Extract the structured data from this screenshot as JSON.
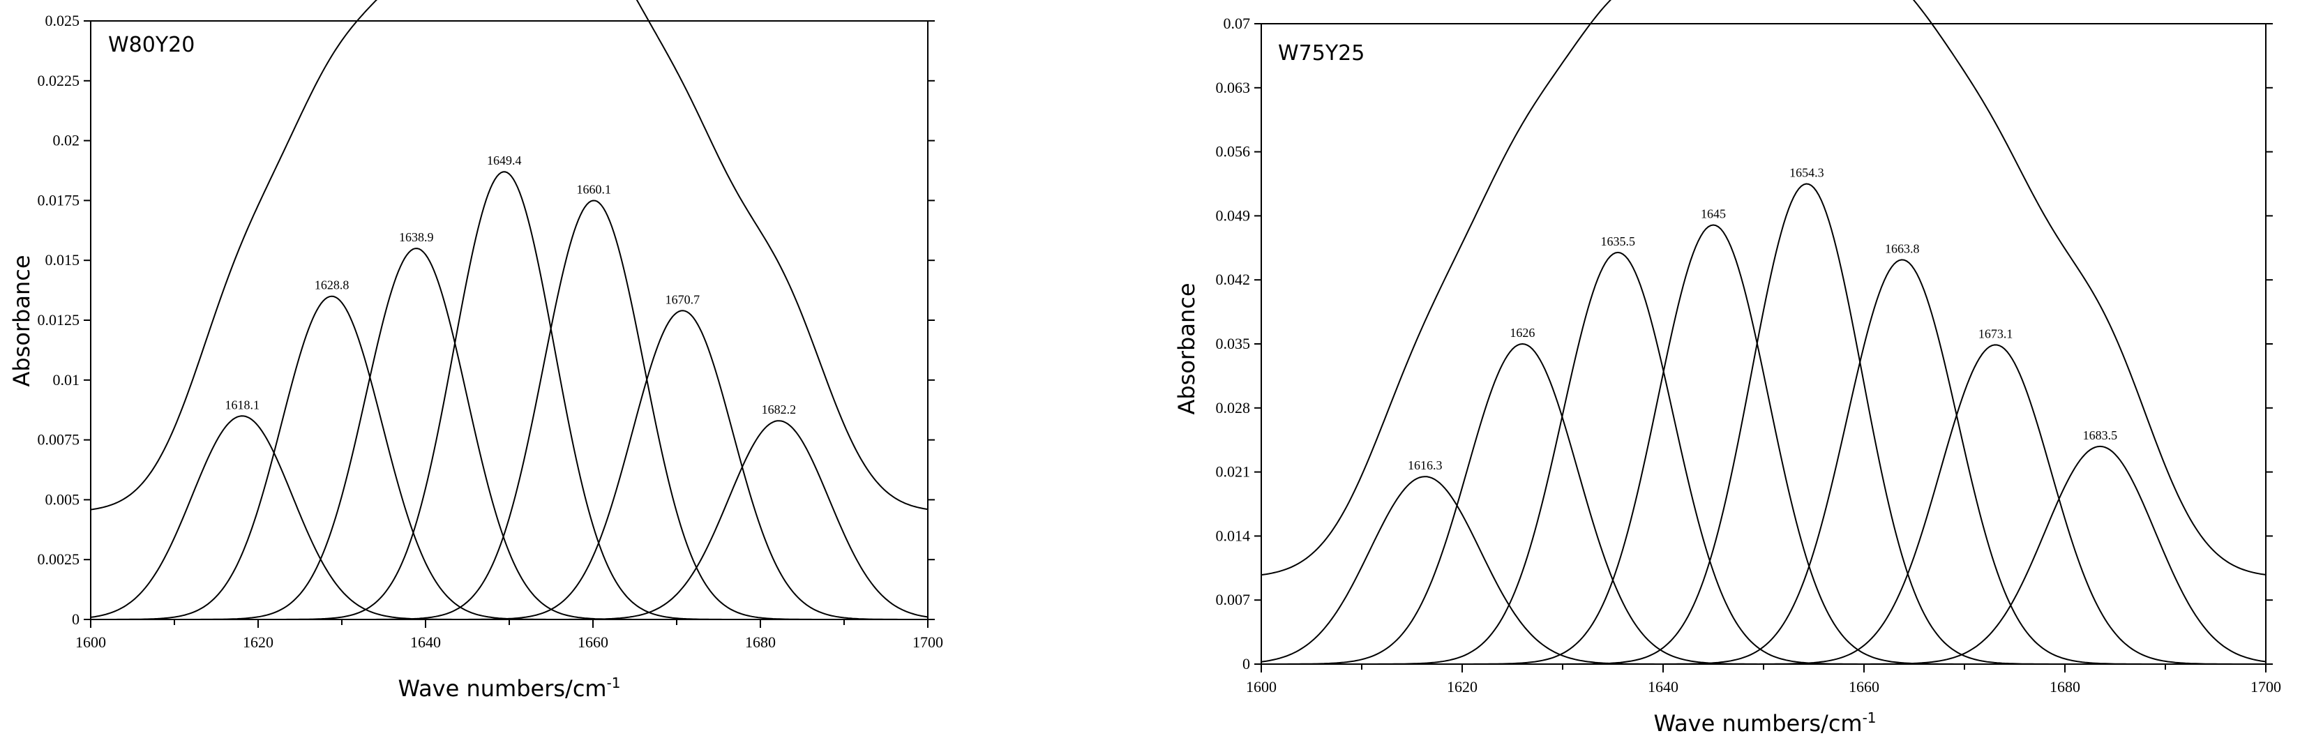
{
  "chart_data": [
    {
      "type": "line",
      "title": "W80Y20",
      "xlabel": "Wave numbers/cm",
      "xlabel_sup": "-1",
      "ylabel": "Absorbance",
      "xlim": [
        1600,
        1700
      ],
      "ylim": [
        0,
        0.025
      ],
      "x_ticks": [
        "1600",
        "1620",
        "1640",
        "1660",
        "1680",
        "1700"
      ],
      "y_ticks": [
        "0",
        "0.0025",
        "0.005",
        "0.0075",
        "0.01",
        "0.0125",
        "0.015",
        "0.0175",
        "0.02",
        "0.0225",
        "0.025"
      ],
      "sigma": 6.0,
      "baseline": 0.0042,
      "envelope_offset": 0.0045,
      "envelope_scale": 1.0,
      "series": [
        {
          "name": "1618.1",
          "center": 1618.1,
          "height": 0.0085
        },
        {
          "name": "1628.8",
          "center": 1628.8,
          "height": 0.0135
        },
        {
          "name": "1638.9",
          "center": 1638.9,
          "height": 0.0155
        },
        {
          "name": "1649.4",
          "center": 1649.4,
          "height": 0.0187
        },
        {
          "name": "1660.1",
          "center": 1660.1,
          "height": 0.0175
        },
        {
          "name": "1670.7",
          "center": 1670.7,
          "height": 0.0129
        },
        {
          "name": "1682.2",
          "center": 1682.2,
          "height": 0.0083
        }
      ]
    },
    {
      "type": "line",
      "title": "W75Y25",
      "xlabel": "Wave numbers/cm",
      "xlabel_sup": "-1",
      "ylabel": "Absorbance",
      "xlim": [
        1600,
        1700
      ],
      "ylim": [
        0,
        0.07
      ],
      "x_ticks": [
        "1600",
        "1620",
        "1640",
        "1660",
        "1680",
        "1700"
      ],
      "y_ticks": [
        "0",
        "0.007",
        "0.014",
        "0.021",
        "0.028",
        "0.035",
        "0.042",
        "0.049",
        "0.056",
        "0.063",
        "0.07"
      ],
      "sigma": 5.5,
      "baseline": 0.0085,
      "envelope_offset": 0.0095,
      "envelope_scale": 1.0,
      "series": [
        {
          "name": "1616.3",
          "center": 1616.3,
          "height": 0.0205
        },
        {
          "name": "1626",
          "center": 1626.0,
          "height": 0.035
        },
        {
          "name": "1635.5",
          "center": 1635.5,
          "height": 0.045
        },
        {
          "name": "1645",
          "center": 1645.0,
          "height": 0.048
        },
        {
          "name": "1654.3",
          "center": 1654.3,
          "height": 0.0525
        },
        {
          "name": "1663.8",
          "center": 1663.8,
          "height": 0.0442
        },
        {
          "name": "1673.1",
          "center": 1673.1,
          "height": 0.0349
        },
        {
          "name": "1683.5",
          "center": 1683.5,
          "height": 0.0238
        }
      ]
    }
  ]
}
